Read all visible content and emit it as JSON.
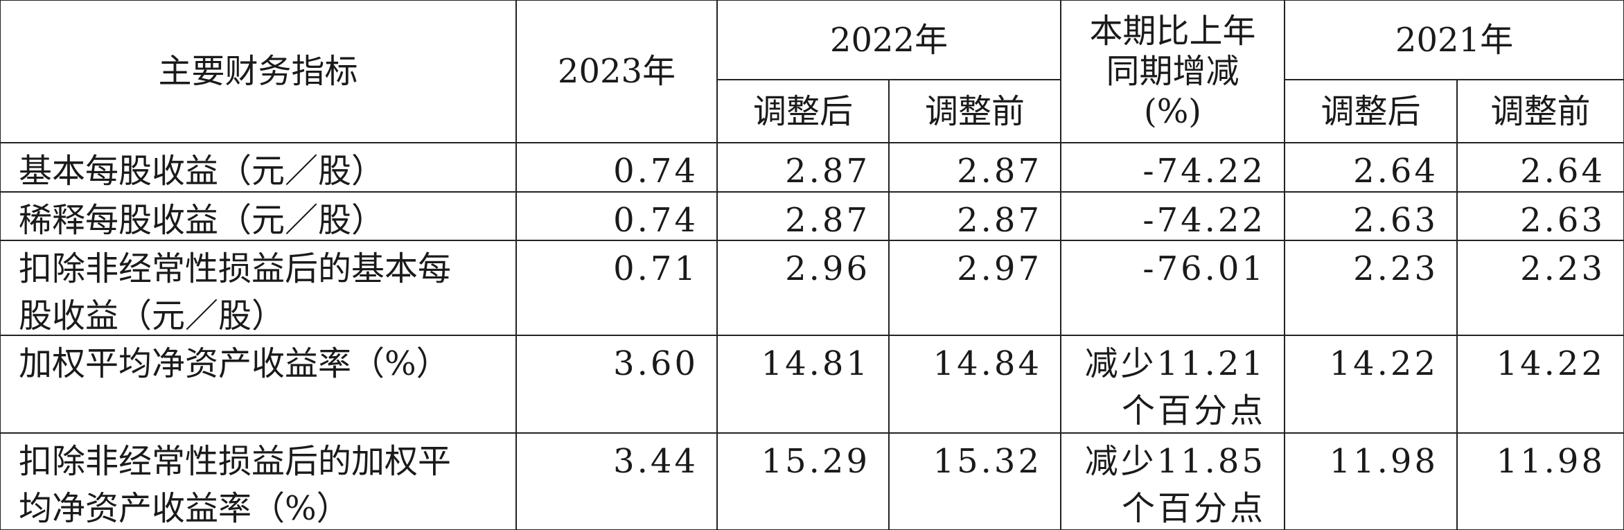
{
  "header": {
    "indicator": "主要财务指标",
    "year_2023": "2023年",
    "year_2022": "2022年",
    "change": [
      "本期比上年",
      "同期增减",
      "(%)"
    ],
    "year_2021": "2021年",
    "sub": [
      "调整后",
      "调整前",
      "调整后",
      "调整前"
    ]
  },
  "table": {
    "rows": [
      [
        [
          "基本每股收益（元／股）"
        ],
        [
          "0.74"
        ],
        [
          "2.87"
        ],
        [
          "2.87"
        ],
        [
          "-74.22"
        ],
        [
          "2.64"
        ],
        [
          "2.64"
        ]
      ],
      [
        [
          "稀释每股收益（元／股）"
        ],
        [
          "0.74"
        ],
        [
          "2.87"
        ],
        [
          "2.87"
        ],
        [
          "-74.22"
        ],
        [
          "2.63"
        ],
        [
          "2.63"
        ]
      ],
      [
        [
          "扣除非经常性损益后的基本每",
          "股收益（元／股）"
        ],
        [
          "0.71"
        ],
        [
          "2.96"
        ],
        [
          "2.97"
        ],
        [
          "-76.01"
        ],
        [
          "2.23"
        ],
        [
          "2.23"
        ]
      ],
      [
        [
          "加权平均净资产收益率（%）"
        ],
        [
          "3.60"
        ],
        [
          "14.81"
        ],
        [
          "14.84"
        ],
        [
          "减少11.21",
          "个百分点"
        ],
        [
          "14.22"
        ],
        [
          "14.22"
        ]
      ],
      [
        [
          "扣除非经常性损益后的加权平",
          "均净资产收益率（%）"
        ],
        [
          "3.44"
        ],
        [
          "15.29"
        ],
        [
          "15.32"
        ],
        [
          "减少11.85",
          "个百分点"
        ],
        [
          "11.98"
        ],
        [
          "11.98"
        ]
      ]
    ]
  }
}
